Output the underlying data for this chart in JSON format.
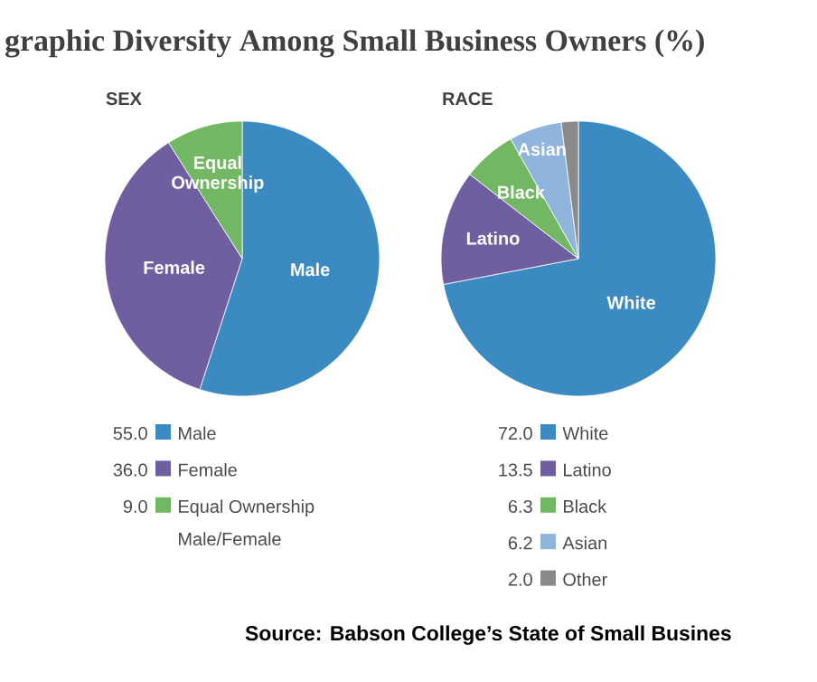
{
  "chart_data": [
    {
      "type": "other",
      "title": "graphic Diversity Among Small Business Owners (%)",
      "annotations": [
        "Source: Babson College’s State of Small Busines"
      ]
    },
    {
      "type": "pie",
      "title": "SEX",
      "categories": [
        "Male",
        "Female",
        "Equal Ownership"
      ],
      "values": [
        55.0,
        36.0,
        9.0
      ],
      "value_labels": [
        "55.0",
        "36.0",
        "9.0"
      ],
      "colors": [
        "#3b8bc2",
        "#6f5fa0",
        "#72b763"
      ],
      "legend": "bottom",
      "annotations": [
        "Male/Female"
      ]
    },
    {
      "type": "pie",
      "title": "RACE",
      "categories": [
        "White",
        "Latino",
        "Black",
        "Asian",
        "Other"
      ],
      "values": [
        72.0,
        13.5,
        6.3,
        6.2,
        2.0
      ],
      "value_labels": [
        "72.0",
        "13.5",
        "6.3",
        "6.2",
        "2.0"
      ],
      "colors": [
        "#3b8bc2",
        "#6f5fa0",
        "#72b763",
        "#8fb5dd",
        "#8a8a8a"
      ],
      "legend": "bottom"
    }
  ]
}
